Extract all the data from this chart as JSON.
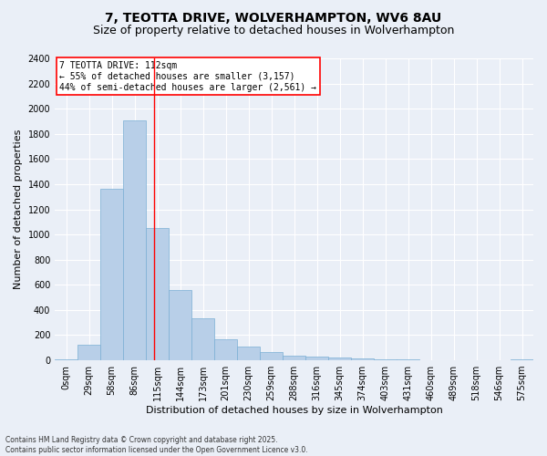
{
  "title_line1": "7, TEOTTA DRIVE, WOLVERHAMPTON, WV6 8AU",
  "title_line2": "Size of property relative to detached houses in Wolverhampton",
  "xlabel": "Distribution of detached houses by size in Wolverhampton",
  "ylabel": "Number of detached properties",
  "footer_line1": "Contains HM Land Registry data © Crown copyright and database right 2025.",
  "footer_line2": "Contains public sector information licensed under the Open Government Licence v3.0.",
  "categories": [
    "0sqm",
    "29sqm",
    "58sqm",
    "86sqm",
    "115sqm",
    "144sqm",
    "173sqm",
    "201sqm",
    "230sqm",
    "259sqm",
    "288sqm",
    "316sqm",
    "345sqm",
    "374sqm",
    "403sqm",
    "431sqm",
    "460sqm",
    "489sqm",
    "518sqm",
    "546sqm",
    "575sqm"
  ],
  "values": [
    10,
    125,
    1360,
    1910,
    1055,
    560,
    335,
    170,
    110,
    63,
    35,
    28,
    22,
    15,
    8,
    5,
    4,
    3,
    2,
    1,
    10
  ],
  "bar_color": "#b8cfe8",
  "bar_edge_color": "#7aafd4",
  "vline_color": "red",
  "vline_x_index": 3.85,
  "annotation_text": "7 TEOTTA DRIVE: 112sqm\n← 55% of detached houses are smaller (3,157)\n44% of semi-detached houses are larger (2,561) →",
  "annotation_box_color": "white",
  "annotation_box_edge_color": "red",
  "ylim": [
    0,
    2400
  ],
  "yticks": [
    0,
    200,
    400,
    600,
    800,
    1000,
    1200,
    1400,
    1600,
    1800,
    2000,
    2200,
    2400
  ],
  "bg_color": "#eaeff7",
  "plot_bg_color": "#eaeff7",
  "grid_color": "white",
  "title_fontsize": 10,
  "subtitle_fontsize": 9,
  "xlabel_fontsize": 8,
  "ylabel_fontsize": 8,
  "tick_fontsize": 7,
  "footer_fontsize": 5.5
}
